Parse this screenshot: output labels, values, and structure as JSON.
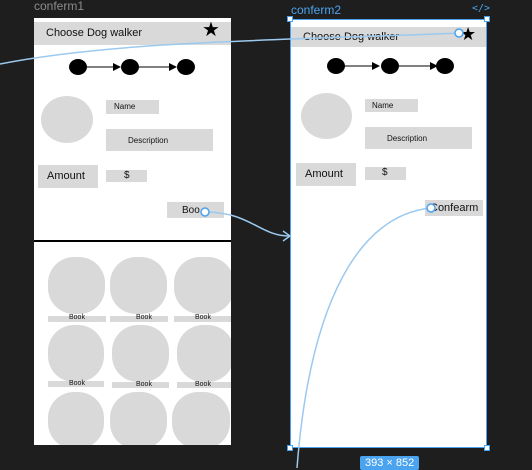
{
  "canvas": {
    "frame1_name": "conferm1",
    "frame2_name": "conferm2",
    "code_icon": "</>",
    "selection_size": "393 × 852"
  },
  "frame1": {
    "header_title": "Choose Dog walker",
    "name_label": "Name",
    "description_label": "Description",
    "amount_label": "Amount",
    "amount_value": "$",
    "book_button": "Boo",
    "grid_labels": [
      "Book",
      "Book",
      "Book",
      "Book",
      "Book",
      "Book"
    ]
  },
  "frame2": {
    "header_title": "Choose Dog walker",
    "name_label": "Name",
    "description_label": "Description",
    "amount_label": "Amount",
    "amount_value": "$",
    "confirm_button": "Confearm"
  },
  "colors": {
    "canvas_bg": "#1e1e1e",
    "placeholder_gray": "#d9d9d9",
    "selection_blue": "#4aa3ef"
  }
}
